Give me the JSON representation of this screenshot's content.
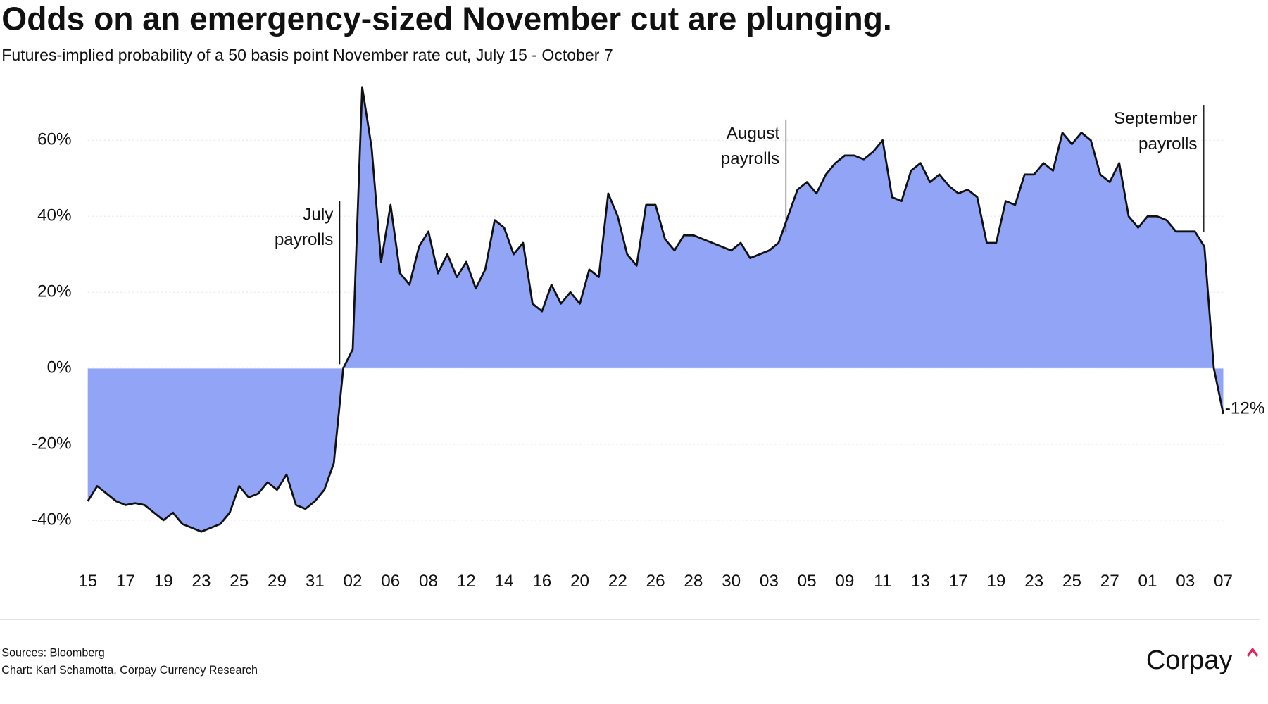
{
  "chart_data": {
    "type": "area",
    "title": "Odds on an emergency-sized November cut are plunging.",
    "subtitle": "Futures-implied probability of a 50 basis point November rate cut, July 15 - October 7",
    "categories": [
      "15",
      null,
      null,
      null,
      "17",
      null,
      null,
      null,
      "19",
      null,
      null,
      null,
      "23",
      null,
      null,
      null,
      "25",
      null,
      null,
      null,
      "29",
      null,
      null,
      null,
      "31",
      null,
      null,
      null,
      "02",
      null,
      null,
      null,
      "06",
      null,
      null,
      null,
      "08",
      null,
      null,
      null,
      "12",
      null,
      null,
      null,
      "14",
      null,
      null,
      null,
      "16",
      null,
      null,
      null,
      "20",
      null,
      null,
      null,
      "22",
      null,
      null,
      null,
      "26",
      null,
      null,
      null,
      "28",
      null,
      null,
      null,
      "30",
      null,
      null,
      null,
      "03",
      null,
      null,
      null,
      "05",
      null,
      null,
      null,
      "09",
      null,
      null,
      null,
      "11",
      null,
      null,
      null,
      "13",
      null,
      null,
      null,
      "17",
      null,
      null,
      null,
      "19",
      null,
      null,
      null,
      "23",
      null,
      null,
      null,
      "25",
      null,
      null,
      null,
      "27",
      null,
      null,
      null,
      "01",
      null,
      null,
      null,
      "03",
      null,
      null,
      null,
      "07"
    ],
    "values": [
      -35,
      -31,
      -33,
      -35,
      -36,
      -35.5,
      -36,
      -38,
      -40,
      -38,
      -41,
      -42,
      -43,
      -42,
      -41,
      -38,
      -31,
      -34,
      -33,
      -30,
      -32,
      -28,
      -36,
      -37,
      -35,
      -32,
      -25,
      0,
      5,
      74,
      58,
      28,
      43,
      25,
      22,
      32,
      36,
      25,
      30,
      24,
      28,
      21,
      26,
      39,
      37,
      30,
      33,
      17,
      15,
      22,
      17,
      20,
      17,
      26,
      24,
      46,
      40,
      30,
      27,
      43,
      43,
      34,
      31,
      35,
      35,
      34,
      33,
      32,
      31,
      33,
      29,
      30,
      31,
      33,
      40,
      47,
      49,
      46,
      51,
      54,
      56,
      56,
      55,
      57,
      60,
      45,
      44,
      52,
      54,
      49,
      51,
      48,
      46,
      47,
      45,
      33,
      33,
      44,
      43,
      51,
      51,
      54,
      52,
      62,
      59,
      62,
      60,
      51,
      49,
      54,
      40,
      37,
      40,
      40,
      39,
      36,
      36,
      36,
      32,
      0,
      -12
    ],
    "value_labels": [
      null,
      null,
      null,
      null,
      null,
      null,
      null,
      null,
      null,
      null,
      null,
      null,
      null,
      null,
      null,
      null,
      null,
      null,
      null,
      null,
      null,
      null,
      null,
      null,
      null,
      null,
      null,
      null,
      null,
      null,
      null,
      null,
      null,
      null,
      null,
      null,
      null,
      null,
      null,
      null,
      null,
      null,
      null,
      null,
      null,
      null,
      null,
      null,
      null,
      null,
      null,
      null,
      null,
      null,
      null,
      null,
      null,
      null,
      null,
      null,
      null,
      null,
      null,
      null,
      null,
      null,
      null,
      null,
      null,
      null,
      null,
      null,
      null,
      null,
      null,
      null,
      null,
      null,
      null,
      null,
      null,
      null,
      null,
      null,
      null,
      null,
      null,
      null,
      null,
      null,
      null,
      null,
      null,
      null,
      null,
      null,
      null,
      null,
      null,
      null,
      null,
      null,
      null,
      null,
      null,
      null,
      null,
      null,
      null,
      null,
      null,
      null,
      null,
      null,
      null,
      null,
      null,
      null,
      null,
      null,
      "-12%"
    ],
    "color": "#91a4f5",
    "line_color": "#111111",
    "ylim": [
      -50,
      75
    ],
    "yticks": [
      {
        "value": -40,
        "label": "-40%"
      },
      {
        "value": -20,
        "label": "-20%"
      },
      {
        "value": 0,
        "label": "0%"
      },
      {
        "value": 20,
        "label": "20%"
      },
      {
        "value": 40,
        "label": "40%"
      },
      {
        "value": 60,
        "label": "60%"
      }
    ],
    "grid": true,
    "annotations": [
      {
        "lines": [
          "July",
          "payrolls"
        ]
      },
      {
        "lines": [
          "August",
          "payrolls"
        ]
      },
      {
        "lines": [
          "September",
          "payrolls"
        ]
      }
    ],
    "sources": "Sources: Bloomberg",
    "credit": "Chart: Karl Schamotta, Corpay Currency Research",
    "logo": "Corpay"
  }
}
